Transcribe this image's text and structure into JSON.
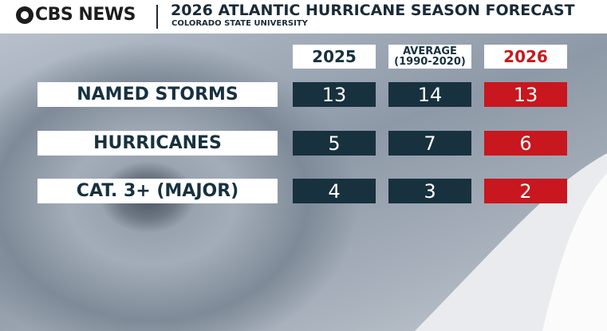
{
  "header": {
    "brand": "CBS NEWS",
    "title": "2026 ATLANTIC HURRICANE SEASON FORECAST",
    "subtitle": "COLORADO STATE UNIVERSITY"
  },
  "table": {
    "columns": [
      {
        "label": "2025"
      },
      {
        "label": "AVERAGE",
        "sublabel": "(1990-2020)"
      },
      {
        "label": "2026"
      }
    ],
    "rows": [
      {
        "label": "NAMED STORMS",
        "values": [
          13,
          14,
          13
        ]
      },
      {
        "label": "HURRICANES",
        "values": [
          5,
          7,
          6
        ]
      },
      {
        "label": "CAT. 3+ (MAJOR)",
        "values": [
          4,
          3,
          2
        ]
      }
    ]
  }
}
